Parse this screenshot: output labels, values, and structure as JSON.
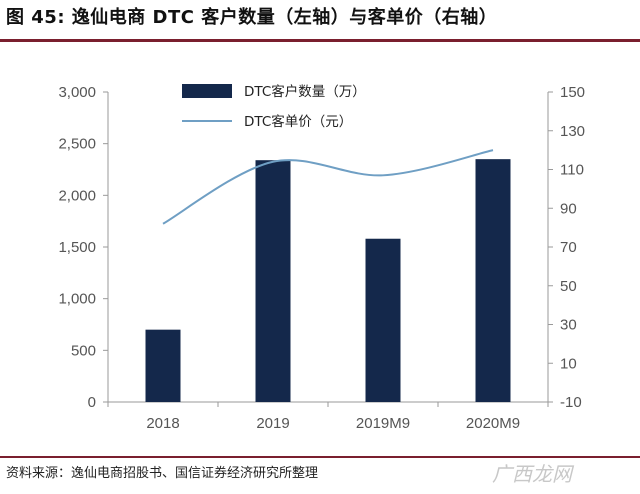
{
  "title": "图 45: 逸仙电商 DTC 客户数量（左轴）与客单价（右轴）",
  "source": "资料来源：逸仙电商招股书、国信证券经济研究所整理",
  "watermark": "广西龙网",
  "chart_data": {
    "type": "bar+line",
    "categories": [
      "2018",
      "2019",
      "2019M9",
      "2020M9"
    ],
    "series": [
      {
        "name": "DTC客户数量（万）",
        "type": "bar",
        "axis": "left",
        "color": "#14284b",
        "values": [
          700,
          2340,
          1580,
          2350
        ]
      },
      {
        "name": "DTC客单价（元）",
        "type": "line",
        "axis": "right",
        "color": "#6f9fc4",
        "values": [
          82,
          114,
          107,
          120
        ]
      }
    ],
    "left_axis": {
      "ylim": [
        0,
        3000
      ],
      "ticks": [
        0,
        500,
        1000,
        1500,
        2000,
        2500,
        3000
      ],
      "tick_labels": [
        "0",
        "500",
        "1,000",
        "1,500",
        "2,000",
        "2,500",
        "3,000"
      ]
    },
    "right_axis": {
      "ylim": [
        -10,
        150
      ],
      "ticks": [
        -10,
        10,
        30,
        50,
        70,
        90,
        110,
        130,
        150
      ],
      "tick_labels": [
        "-10",
        "10",
        "30",
        "50",
        "70",
        "90",
        "110",
        "130",
        "150"
      ]
    },
    "legend_position": "top-left",
    "grid": false
  }
}
